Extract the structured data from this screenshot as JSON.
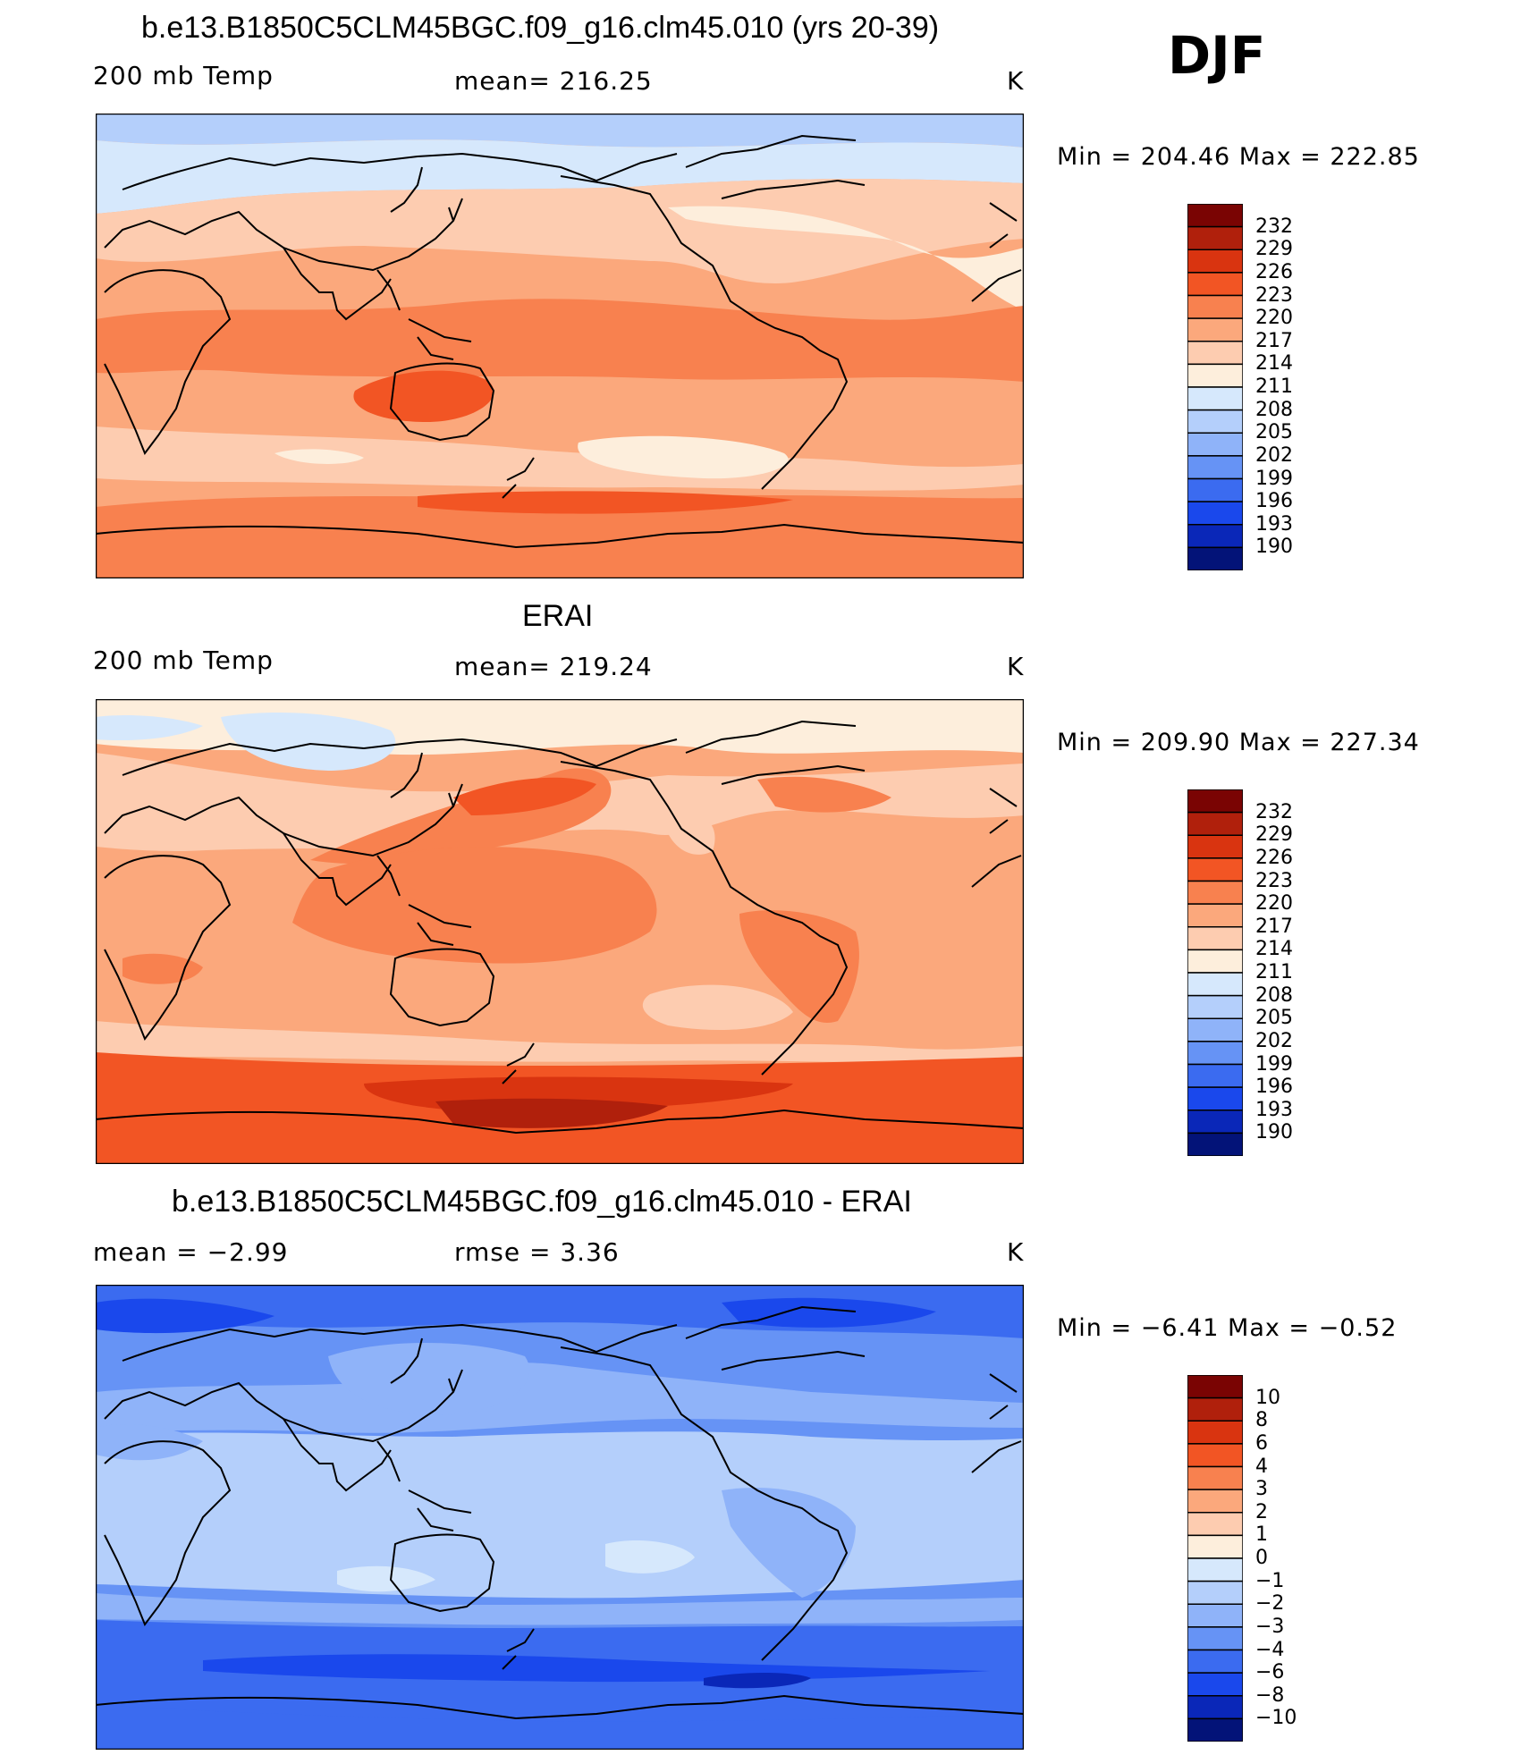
{
  "season": "DJF",
  "panels": [
    {
      "id": "model",
      "title": "b.e13.B1850C5CLM45BGC.f09_g16.clm45.010 (yrs 20-39)",
      "left_label": "200 mb Temp",
      "center_label": "mean= 216.25",
      "unit": "K",
      "range_text": "Min = 204.46 Max = 222.85",
      "colorbar_labels": [
        "232",
        "229",
        "226",
        "223",
        "220",
        "217",
        "214",
        "211",
        "208",
        "205",
        "202",
        "199",
        "196",
        "193",
        "190"
      ]
    },
    {
      "id": "obs",
      "title": "ERAI",
      "left_label": "200 mb Temp",
      "center_label": "mean= 219.24",
      "unit": "K",
      "range_text": "Min = 209.90 Max = 227.34",
      "colorbar_labels": [
        "232",
        "229",
        "226",
        "223",
        "220",
        "217",
        "214",
        "211",
        "208",
        "205",
        "202",
        "199",
        "196",
        "193",
        "190"
      ]
    },
    {
      "id": "diff",
      "title": "b.e13.B1850C5CLM45BGC.f09_g16.clm45.010 - ERAI",
      "left_label": "mean =    −2.99",
      "center_label": "rmse =     3.36",
      "unit": "K",
      "range_text": "Min =   −6.41 Max =   −0.52",
      "colorbar_labels": [
        "10",
        "8",
        "6",
        "4",
        "3",
        "2",
        "1",
        "0",
        "−1",
        "−2",
        "−3",
        "−4",
        "−6",
        "−8",
        "−10"
      ]
    }
  ],
  "colors": {
    "scale": [
      "#7a0403",
      "#b0200c",
      "#d93410",
      "#f25524",
      "#f8814f",
      "#fba87c",
      "#fdccb0",
      "#fdeedc",
      "#d6e8fc",
      "#b4cffb",
      "#8fb3f9",
      "#6693f5",
      "#3b6bf0",
      "#1a48ec",
      "#0a27b8",
      "#031378"
    ]
  }
}
